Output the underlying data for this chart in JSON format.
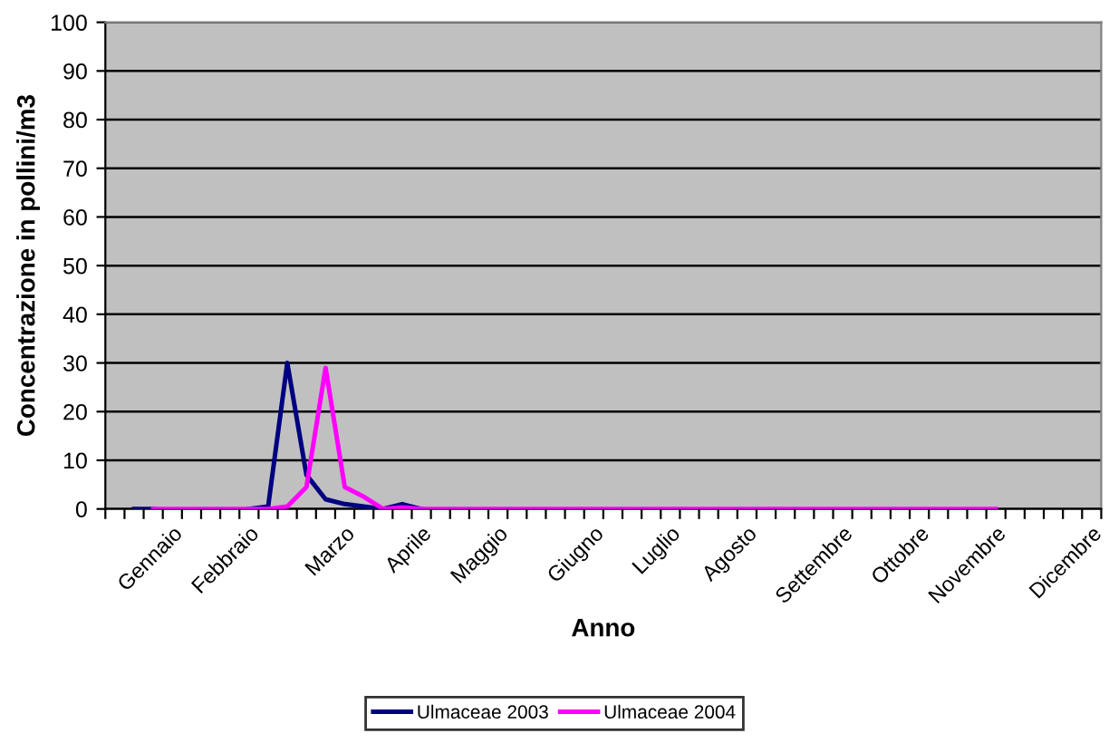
{
  "chart_data": {
    "type": "line",
    "xlabel": "Anno",
    "ylabel": "Concentrazione in pollini/m3",
    "categories": [
      null,
      null,
      null,
      "Gennaio",
      null,
      null,
      null,
      "Febbraio",
      null,
      null,
      null,
      null,
      "Marzo",
      null,
      null,
      null,
      "Aprile",
      null,
      null,
      null,
      "Maggio",
      null,
      null,
      null,
      null,
      "Giugno",
      null,
      null,
      null,
      "Luglio",
      null,
      null,
      null,
      "Agosto",
      null,
      null,
      null,
      null,
      "Settembre",
      null,
      null,
      null,
      "Ottobre",
      null,
      null,
      null,
      "Novembre",
      null,
      null,
      null,
      null,
      "Dicembre"
    ],
    "series": [
      {
        "name": "Ulmaceae 2003",
        "color": "#000080",
        "values": [
          null,
          0,
          0,
          null,
          null,
          null,
          null,
          0,
          0.5,
          30,
          7,
          2,
          1,
          0.5,
          0,
          1,
          0,
          null,
          null,
          null,
          null,
          null,
          null,
          null,
          null,
          null,
          null,
          null,
          null,
          null,
          null,
          null,
          null,
          null,
          null,
          null,
          null,
          null,
          null,
          null,
          null,
          null,
          null,
          null,
          null,
          null,
          null,
          null,
          null,
          null,
          null,
          null
        ]
      },
      {
        "name": "Ulmaceae 2004",
        "color": "#ff00ff",
        "values": [
          null,
          null,
          0,
          0,
          0,
          0,
          0,
          0,
          0,
          0.5,
          4.5,
          29,
          4.5,
          2.5,
          0,
          0.3,
          0,
          0,
          0,
          0,
          0,
          0,
          0,
          0,
          0,
          0,
          0,
          0,
          0,
          0,
          0,
          0,
          0,
          0,
          0,
          0,
          0,
          0,
          0,
          0,
          0,
          0,
          0,
          0,
          0,
          0,
          0,
          null,
          null,
          null,
          null,
          null
        ]
      }
    ],
    "ylim": [
      0,
      100
    ],
    "yticks": [
      0,
      10,
      20,
      30,
      40,
      50,
      60,
      70,
      80,
      90,
      100
    ],
    "grid": "y",
    "legend": "bottom",
    "marker": "none",
    "line_style": "solid"
  }
}
